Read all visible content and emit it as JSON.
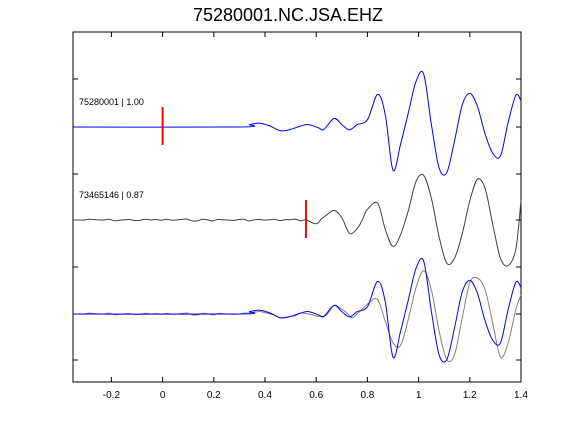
{
  "chart_data": {
    "type": "line",
    "title": "75280001.NC.JSA.EHZ",
    "xlabel": "",
    "ylabel": "",
    "xlim": [
      -0.35,
      1.4
    ],
    "xticks": [
      -0.2,
      0,
      0.2,
      0.4,
      0.6,
      0.8,
      1,
      1.2,
      1.4
    ],
    "xtick_labels": [
      "-0.2",
      "0",
      "0.2",
      "0.4",
      "0.6",
      "0.8",
      "1",
      "1.2",
      "1.4"
    ],
    "grid": false,
    "panels": [
      {
        "label": "75280001 | 1.00",
        "color": "#0000ff",
        "pick_time": 0.0,
        "pick_color": "#ff0000",
        "series_ref": "main"
      },
      {
        "label": "73465146 | 0.87",
        "color": "#404040",
        "pick_time": 0.56,
        "pick_color": "#ff0000",
        "series_ref": "neighbor"
      },
      {
        "label": "",
        "overlay": true,
        "series_refs": [
          "neighbor_aligned",
          "main"
        ],
        "colors": [
          "#808080",
          "#0000ff"
        ]
      }
    ],
    "series": {
      "main": {
        "t": [
          -0.35,
          0.3,
          0.34,
          0.38,
          0.42,
          0.46,
          0.5,
          0.54,
          0.57,
          0.61,
          0.63,
          0.67,
          0.7,
          0.73,
          0.76,
          0.8,
          0.84,
          0.87,
          0.9,
          0.93,
          0.96,
          0.99,
          1.02,
          1.05,
          1.08,
          1.11,
          1.14,
          1.17,
          1.2,
          1.23,
          1.26,
          1.29,
          1.32,
          1.35,
          1.38,
          1.4
        ],
        "v": [
          0.0,
          0.0,
          0.05,
          0.08,
          0.02,
          -0.08,
          -0.05,
          0.02,
          0.05,
          -0.02,
          -0.05,
          0.18,
          0.05,
          -0.06,
          0.05,
          0.15,
          0.68,
          0.25,
          -0.9,
          -0.35,
          0.3,
          0.95,
          1.1,
          0.05,
          -0.85,
          -0.95,
          -0.3,
          0.45,
          0.7,
          0.43,
          -0.15,
          -0.55,
          -0.6,
          0.1,
          0.66,
          0.55
        ]
      },
      "neighbor": {
        "t": [
          -0.35,
          0.56,
          0.6,
          0.64,
          0.67,
          0.7,
          0.73,
          0.76,
          0.8,
          0.84,
          0.87,
          0.9,
          0.93,
          0.96,
          0.99,
          1.02,
          1.05,
          1.08,
          1.11,
          1.14,
          1.17,
          1.2,
          1.23,
          1.26,
          1.29,
          1.32,
          1.35,
          1.38,
          1.4
        ],
        "v": [
          0.0,
          0.0,
          -0.08,
          0.1,
          0.2,
          0.05,
          -0.28,
          -0.18,
          0.22,
          0.35,
          -0.2,
          -0.55,
          -0.3,
          0.2,
          0.8,
          0.93,
          0.45,
          -0.35,
          -0.9,
          -0.8,
          -0.3,
          0.4,
          0.85,
          0.65,
          -0.1,
          -0.8,
          -0.95,
          -0.6,
          0.4
        ]
      },
      "neighbor_aligned": {
        "t": [
          -0.35,
          0.3,
          0.34,
          0.38,
          0.42,
          0.46,
          0.5,
          0.54,
          0.57,
          0.61,
          0.64,
          0.67,
          0.7,
          0.74,
          0.78,
          0.81,
          0.84,
          0.87,
          0.9,
          0.93,
          0.96,
          0.99,
          1.02,
          1.05,
          1.08,
          1.11,
          1.14,
          1.17,
          1.2,
          1.23,
          1.26,
          1.29,
          1.32,
          1.35,
          1.38,
          1.4
        ],
        "v": [
          0.0,
          0.0,
          0.02,
          0.05,
          0.0,
          -0.08,
          -0.05,
          0.02,
          0.0,
          -0.05,
          -0.02,
          0.18,
          0.1,
          -0.08,
          0.1,
          0.25,
          0.3,
          -0.15,
          -0.6,
          -0.65,
          -0.1,
          0.55,
          0.9,
          0.5,
          -0.35,
          -0.95,
          -0.85,
          -0.1,
          0.65,
          0.75,
          0.5,
          -0.2,
          -0.9,
          -0.6,
          0.1,
          0.4
        ]
      }
    }
  }
}
